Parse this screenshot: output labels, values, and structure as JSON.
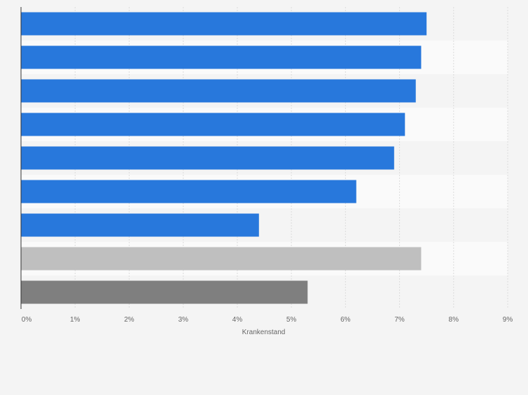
{
  "chart_data": {
    "type": "bar",
    "orientation": "horizontal",
    "title": "",
    "xlabel": "Krankenstand",
    "ylabel": "",
    "xlim": [
      0,
      9
    ],
    "x_ticks": [
      0,
      1,
      2,
      3,
      4,
      5,
      6,
      7,
      8,
      9
    ],
    "tick_format": "{v}%",
    "grid": true,
    "categories": [
      "",
      "",
      "",
      "",
      "",
      "",
      "",
      "",
      ""
    ],
    "values": [
      7.5,
      7.4,
      7.3,
      7.1,
      6.9,
      6.2,
      4.4,
      7.4,
      5.3
    ],
    "bar_colors": [
      "#2878dc",
      "#2878dc",
      "#2878dc",
      "#2878dc",
      "#2878dc",
      "#2878dc",
      "#2878dc",
      "#bfbfbf",
      "#7f7f7f"
    ]
  },
  "colors": {
    "background": "#f4f4f4",
    "band_light": "#fafafa",
    "band_dark": "#f4f4f4",
    "grid": "#dcdcdc",
    "axis": "#333333",
    "tick_text": "#666666"
  }
}
